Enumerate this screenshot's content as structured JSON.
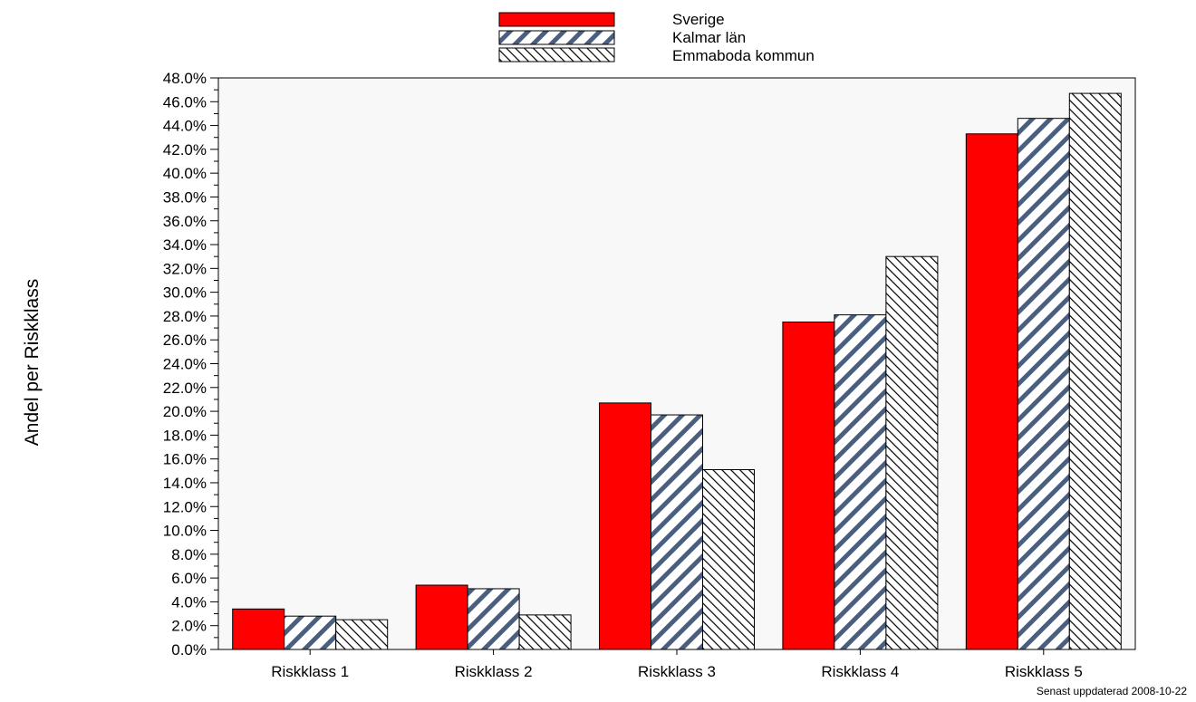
{
  "chart_data": {
    "type": "bar",
    "categories": [
      "Riskklass 1",
      "Riskklass 2",
      "Riskklass 3",
      "Riskklass 4",
      "Riskklass 5"
    ],
    "series": [
      {
        "name": "Sverige",
        "values": [
          3.4,
          5.4,
          20.7,
          27.5,
          43.3
        ],
        "color": "#ff0000",
        "pattern": "solid"
      },
      {
        "name": "Kalmar län",
        "values": [
          2.8,
          5.1,
          19.7,
          28.1,
          44.6
        ],
        "color": "#4a5f80",
        "pattern": "thick-diagonal-stripes"
      },
      {
        "name": "Emmaboda kommun",
        "values": [
          2.5,
          2.9,
          15.1,
          33.0,
          46.7
        ],
        "color": "#000000",
        "pattern": "thin-back-diagonal-hatch"
      }
    ],
    "ylabel": "Andel per Riskklass",
    "xlabel": "",
    "ylim": [
      0,
      48
    ],
    "ytick_step": 2,
    "yticks": [
      "0.0%",
      "2.0%",
      "4.0%",
      "6.0%",
      "8.0%",
      "10.0%",
      "12.0%",
      "14.0%",
      "16.0%",
      "18.0%",
      "20.0%",
      "22.0%",
      "24.0%",
      "26.0%",
      "28.0%",
      "30.0%",
      "32.0%",
      "34.0%",
      "36.0%",
      "38.0%",
      "40.0%",
      "42.0%",
      "44.0%",
      "46.0%",
      "48.0%"
    ],
    "legend_position": "top-center",
    "plot_background": "#f8f8f8",
    "grid": false
  },
  "footnote": "Senast uppdaterad 2008-10-22"
}
